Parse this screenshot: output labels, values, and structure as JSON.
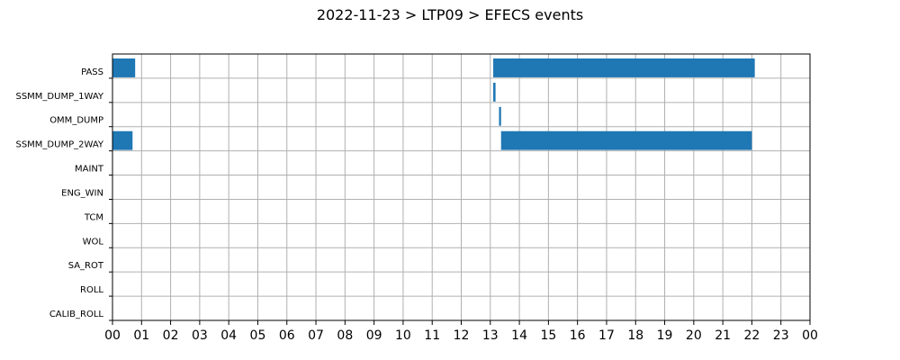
{
  "chart_data": {
    "type": "bar",
    "orientation": "horizontal",
    "title": "2022-11-23 > LTP09 > EFECS events",
    "xlabel": "",
    "ylabel": "",
    "xlim": [
      0,
      24
    ],
    "x_unit": "hour",
    "grid": true,
    "bar_color": "#1f77b4",
    "x_tick_labels": [
      "00",
      "01",
      "02",
      "03",
      "04",
      "05",
      "06",
      "07",
      "08",
      "09",
      "10",
      "11",
      "12",
      "13",
      "14",
      "15",
      "16",
      "17",
      "18",
      "19",
      "20",
      "21",
      "22",
      "23",
      "00"
    ],
    "categories": [
      "PASS",
      "SSMM_DUMP_1WAY",
      "OMM_DUMP",
      "SSMM_DUMP_2WAY",
      "MAINT",
      "ENG_WIN",
      "TCM",
      "WOL",
      "SA_ROT",
      "ROLL",
      "CALIB_ROLL"
    ],
    "events": [
      {
        "category": "PASS",
        "start": 0.0,
        "end": 0.78
      },
      {
        "category": "PASS",
        "start": 13.1,
        "end": 22.1
      },
      {
        "category": "SSMM_DUMP_1WAY",
        "start": 13.1,
        "end": 13.18
      },
      {
        "category": "OMM_DUMP",
        "start": 13.3,
        "end": 13.37
      },
      {
        "category": "SSMM_DUMP_2WAY",
        "start": 0.0,
        "end": 0.69
      },
      {
        "category": "SSMM_DUMP_2WAY",
        "start": 13.37,
        "end": 22.0
      }
    ]
  }
}
